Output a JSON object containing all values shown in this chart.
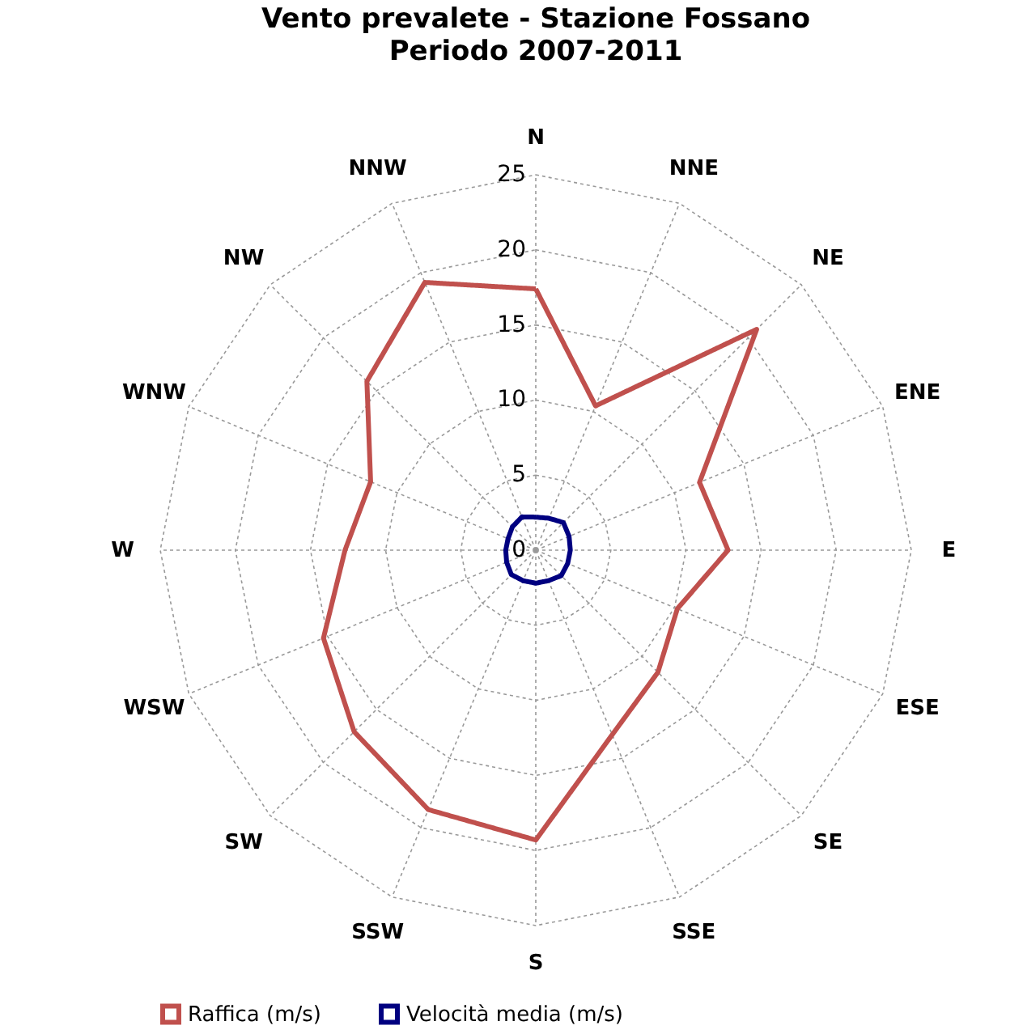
{
  "chart_data": {
    "type": "radar",
    "title": "Vento prevalete - Stazione Fossano",
    "subtitle": "Periodo 2007-2011",
    "categories": [
      "N",
      "NNE",
      "NE",
      "ENE",
      "E",
      "ESE",
      "SE",
      "SSE",
      "S",
      "SSW",
      "SW",
      "WSW",
      "W",
      "WNW",
      "NW",
      "NNW"
    ],
    "ylim": [
      0,
      25
    ],
    "yticks": [
      0,
      5,
      10,
      15,
      20,
      25
    ],
    "grid": true,
    "legend": "bottom",
    "line_style": "solid",
    "marker": "none",
    "series": [
      {
        "name": "Raffica (m/s)",
        "color": "#c0504d",
        "values": [
          17.4,
          10.4,
          20.8,
          11.8,
          12.8,
          10.2,
          11.5,
          13.3,
          19.3,
          18.7,
          17.1,
          15.3,
          12.7,
          11.9,
          15.9,
          19.3
        ]
      },
      {
        "name": "Velocità media (m/s)",
        "color": "#000080",
        "values": [
          2.2,
          2.3,
          2.6,
          2.4,
          2.3,
          2.3,
          2.4,
          2.2,
          2.2,
          2.2,
          2.3,
          2.1,
          2.0,
          2.0,
          2.2,
          2.4
        ]
      }
    ]
  }
}
